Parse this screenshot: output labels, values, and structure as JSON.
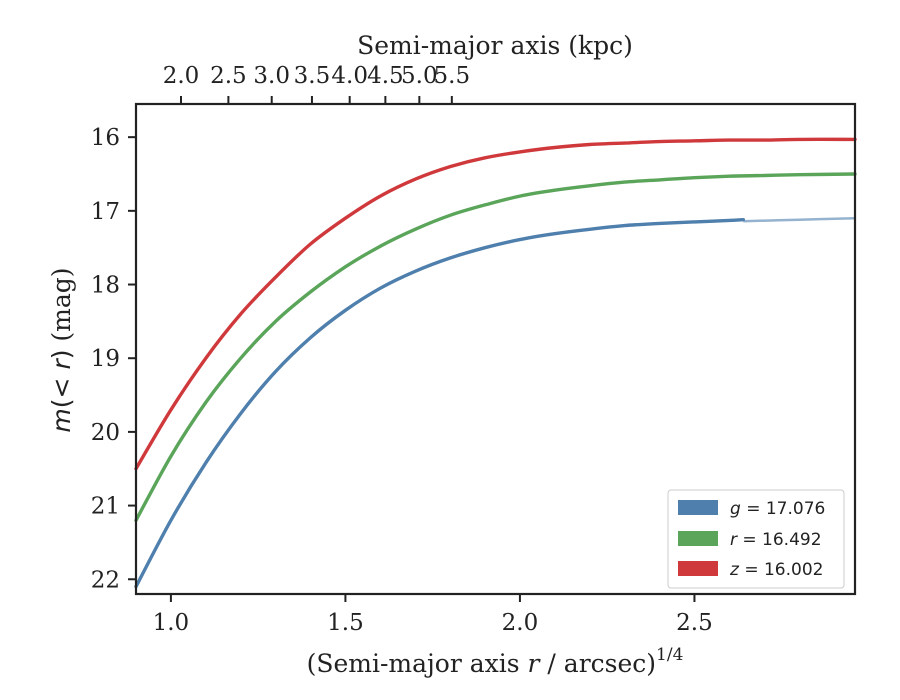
{
  "chart_data": {
    "type": "line",
    "title": "",
    "xlabel_prefix": "(Semi-major axis ",
    "xlabel_var": "r",
    "xlabel_suffix": " / arcsec)",
    "xlabel_exponent": "1/4",
    "ylabel_func": "m",
    "ylabel_open": "(< ",
    "ylabel_var": "r",
    "ylabel_close": ")",
    "ylabel_unit": " (mag)",
    "top_xlabel": "Semi-major axis (kpc)",
    "xlim": [
      0.9,
      2.96
    ],
    "ylim": [
      22.2,
      15.55
    ],
    "y_inverted": true,
    "x_ticks": [
      1.0,
      1.5,
      2.0,
      2.5
    ],
    "x_tick_labels": [
      "1.0",
      "1.5",
      "2.0",
      "2.5"
    ],
    "y_ticks": [
      16,
      17,
      18,
      19,
      20,
      21,
      22
    ],
    "y_tick_labels": [
      "16",
      "17",
      "18",
      "19",
      "20",
      "21",
      "22"
    ],
    "top_ticks_kpc": [
      2.0,
      2.5,
      3.0,
      3.5,
      4.0,
      4.5,
      5.0,
      5.5
    ],
    "top_tick_labels": [
      "2.0",
      "2.5",
      "3.0",
      "3.5",
      "4.0",
      "4.5",
      "5.0",
      "5.5"
    ],
    "kpc_scale": "kpc = 1.9 * x^1.8",
    "legend_position": "lower-right",
    "series": [
      {
        "name": "g",
        "label_var": "g",
        "label_value": "= 17.076",
        "color": "#4e7fad",
        "x": [
          0.9,
          1.0,
          1.1,
          1.2,
          1.3,
          1.4,
          1.5,
          1.6,
          1.7,
          1.8,
          1.9,
          2.0,
          2.1,
          2.2,
          2.3,
          2.4,
          2.5,
          2.6,
          2.64
        ],
        "y": [
          22.1,
          21.2,
          20.42,
          19.75,
          19.18,
          18.72,
          18.35,
          18.05,
          17.82,
          17.64,
          17.5,
          17.39,
          17.31,
          17.25,
          17.2,
          17.17,
          17.15,
          17.13,
          17.12
        ],
        "faded_x": [
          2.64,
          2.8,
          2.96
        ],
        "faded_y": [
          17.14,
          17.12,
          17.1
        ]
      },
      {
        "name": "r",
        "label_var": "r",
        "label_value": "= 16.492",
        "color": "#5aa55a",
        "x": [
          0.9,
          1.0,
          1.1,
          1.2,
          1.3,
          1.4,
          1.5,
          1.6,
          1.7,
          1.8,
          1.9,
          2.0,
          2.1,
          2.2,
          2.3,
          2.4,
          2.5,
          2.6,
          2.7,
          2.8,
          2.96
        ],
        "y": [
          21.2,
          20.33,
          19.6,
          19.0,
          18.5,
          18.1,
          17.76,
          17.48,
          17.25,
          17.06,
          16.92,
          16.8,
          16.72,
          16.66,
          16.61,
          16.58,
          16.55,
          16.53,
          16.52,
          16.51,
          16.5
        ]
      },
      {
        "name": "z",
        "label_var": "z",
        "label_value": "= 16.002",
        "color": "#d0393c",
        "x": [
          0.9,
          1.0,
          1.1,
          1.2,
          1.3,
          1.4,
          1.5,
          1.6,
          1.7,
          1.8,
          1.9,
          2.0,
          2.1,
          2.2,
          2.3,
          2.4,
          2.5,
          2.6,
          2.7,
          2.8,
          2.96
        ],
        "y": [
          20.5,
          19.7,
          19.0,
          18.4,
          17.9,
          17.45,
          17.1,
          16.8,
          16.57,
          16.4,
          16.28,
          16.2,
          16.14,
          16.1,
          16.08,
          16.06,
          16.05,
          16.04,
          16.04,
          16.03,
          16.03
        ]
      }
    ]
  }
}
